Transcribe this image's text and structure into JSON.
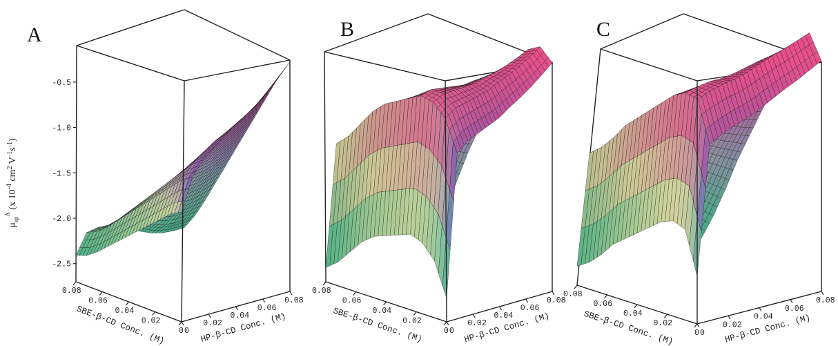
{
  "chart_data": [
    {
      "type": "surface3d",
      "panel_label": "A",
      "z_label": "μ^A_ep (x 10^-4 cm² V^-1s^-1)",
      "z_ticks": [
        "-0.5",
        "-1.0",
        "-1.5",
        "-2.0",
        "-2.5"
      ],
      "x_label": "SBE-β-CD Conc. (M)",
      "x_ticks": [
        "0.08",
        "0.06",
        "0.04",
        "0.02",
        "0"
      ],
      "y_label": "HP-β-CD Conc. (M)",
      "y_ticks": [
        "0",
        "0.02",
        "0.04",
        "0.06",
        "0.08"
      ],
      "surface_profile": {
        "u": [
          0,
          0.1,
          0.2,
          0.3,
          0.4,
          0.5,
          0.6,
          0.7,
          0.8,
          0.9,
          1.0
        ],
        "v": [
          0,
          0.1,
          0.2,
          0.3,
          0.4,
          0.5,
          0.6,
          0.7,
          0.8,
          0.9,
          1.0
        ],
        "z_sbe_edge": [
          -1.54,
          -1.6,
          -1.7,
          -1.8,
          -1.9,
          -2.0,
          -2.1,
          -2.2,
          -2.3,
          -2.38,
          -2.42
        ],
        "z_hp_edge": [
          -1.54,
          -1.2,
          -1.05,
          -0.95,
          -0.85,
          -0.78,
          -0.7,
          -0.62,
          -0.52,
          -0.4,
          -0.27
        ],
        "z_far_corner": -2.45
      }
    },
    {
      "type": "surface3d",
      "panel_label": "B",
      "x_label": "SBE-β-CD Conc. (M)",
      "x_ticks": [
        "0.08",
        "0.06",
        "0.04",
        "0.02",
        "0"
      ],
      "y_label": "HP-β-CD Conc. (M)",
      "y_ticks": [
        "0",
        "0.02",
        "0.04",
        "0.06",
        "0.08"
      ],
      "surface_profile": {
        "u": [
          0,
          0.1,
          0.2,
          0.3,
          0.4,
          0.5,
          0.6,
          0.7,
          0.8,
          0.9,
          1.0
        ],
        "v": [
          0,
          0.1,
          0.2,
          0.3,
          0.4,
          0.5,
          0.6,
          0.7,
          0.8,
          0.9,
          1.0
        ],
        "z_sbe_edge": [
          -2.45,
          -2.1,
          -1.95,
          -1.9,
          -1.95,
          -2.0,
          -2.05,
          -2.15,
          -2.3,
          -2.45,
          -2.55
        ],
        "z_hp_edge": [
          -2.45,
          -0.95,
          -0.85,
          -0.8,
          -0.75,
          -0.7,
          -0.62,
          -0.55,
          -0.47,
          -0.38,
          -0.28
        ],
        "z_far_corner": -2.6
      }
    },
    {
      "type": "surface3d",
      "panel_label": "C",
      "x_label": "SBE-β-CD Conc. (M)",
      "x_ticks": [
        "0.08",
        "0.06",
        "0.04",
        "0.02",
        "0"
      ],
      "y_label": "HP-β-CD Conc. (M)",
      "y_ticks": [
        "0",
        "0.02",
        "0.04",
        "0.06",
        "0.08"
      ],
      "surface_profile": {
        "u": [
          0,
          0.1,
          0.2,
          0.3,
          0.4,
          0.5,
          0.6,
          0.7,
          0.8,
          0.9,
          1.0
        ],
        "v": [
          0,
          0.1,
          0.2,
          0.3,
          0.4,
          0.5,
          0.6,
          0.7,
          0.8,
          0.9,
          1.0
        ],
        "z_sbe_edge": [
          -2.2,
          -1.75,
          -1.7,
          -1.75,
          -1.85,
          -1.95,
          -2.05,
          -2.15,
          -2.3,
          -2.42,
          -2.5
        ],
        "z_hp_edge": [
          -2.2,
          -0.85,
          -0.78,
          -0.72,
          -0.68,
          -0.62,
          -0.55,
          -0.48,
          -0.42,
          -0.35,
          -0.28
        ],
        "z_far_corner": -2.55
      }
    }
  ],
  "colors": {
    "surface_low": "#3fc596",
    "surface_mid_left": "#e9e3a0",
    "surface_mid_right": "#5a55b8",
    "surface_high": "#e8508a",
    "mesh_line": "#1b1b1b",
    "box_line": "#222222"
  }
}
